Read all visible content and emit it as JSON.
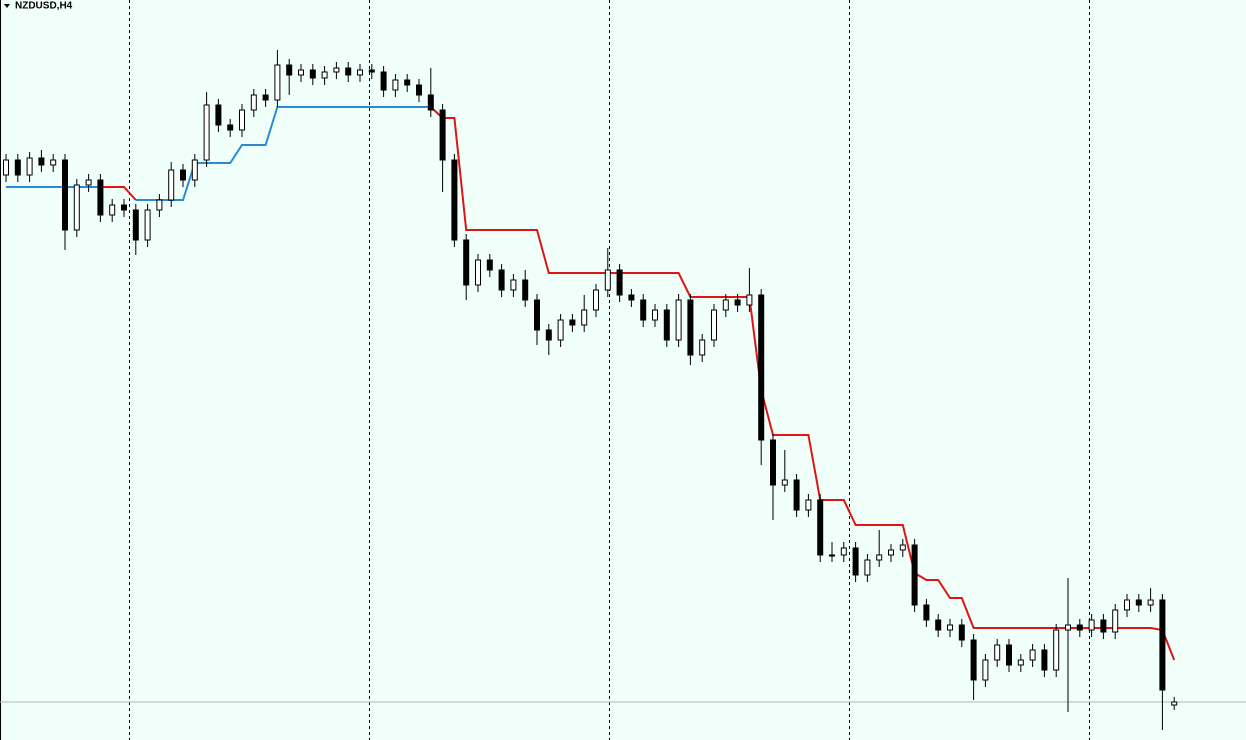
{
  "chart_data": {
    "type": "candlestick",
    "title": "NZDUSD,H4",
    "open": [
      565,
      580,
      565,
      582,
      575,
      580,
      510,
      555,
      560,
      525,
      535,
      530,
      500,
      530,
      540,
      570,
      560,
      580,
      635,
      615,
      610,
      630,
      645,
      640,
      675,
      665,
      670,
      662,
      668,
      672,
      665,
      670,
      668,
      650,
      660,
      655,
      645,
      630,
      580,
      500,
      455,
      480,
      470,
      450,
      460,
      440,
      410,
      400,
      420,
      415,
      430,
      450,
      470,
      445,
      440,
      420,
      430,
      400,
      440,
      385,
      400,
      430,
      440,
      435,
      445,
      300,
      255,
      260,
      230,
      240,
      185,
      185,
      192,
      165,
      180,
      185,
      190,
      195,
      135,
      120,
      110,
      115,
      100,
      60,
      80,
      95,
      75,
      80,
      90,
      70,
      110,
      115,
      110,
      120,
      108,
      130,
      140,
      135,
      140,
      35
    ],
    "high": [
      586,
      586,
      588,
      590,
      586,
      586,
      561,
      566,
      566,
      541,
      541,
      536,
      536,
      546,
      578,
      576,
      586,
      648,
      641,
      621,
      636,
      651,
      651,
      690,
      681,
      676,
      676,
      674,
      678,
      678,
      676,
      676,
      674,
      666,
      666,
      661,
      672,
      636,
      586,
      506,
      486,
      486,
      476,
      466,
      470,
      446,
      416,
      426,
      426,
      445,
      456,
      492,
      476,
      451,
      446,
      436,
      436,
      446,
      446,
      406,
      436,
      446,
      446,
      472,
      451,
      306,
      290,
      266,
      246,
      246,
      198,
      198,
      198,
      186,
      210,
      196,
      201,
      201,
      141,
      126,
      121,
      121,
      106,
      86,
      101,
      101,
      86,
      96,
      96,
      116,
      162,
      121,
      126,
      126,
      136,
      146,
      146,
      152,
      146,
      43
    ],
    "low": [
      558,
      558,
      558,
      568,
      568,
      490,
      503,
      548,
      518,
      518,
      523,
      485,
      493,
      523,
      533,
      553,
      553,
      573,
      608,
      603,
      603,
      623,
      633,
      633,
      645,
      658,
      655,
      655,
      661,
      658,
      658,
      661,
      643,
      643,
      648,
      638,
      623,
      548,
      493,
      440,
      448,
      463,
      443,
      443,
      433,
      395,
      385,
      393,
      408,
      408,
      423,
      443,
      438,
      433,
      413,
      413,
      393,
      393,
      375,
      378,
      393,
      423,
      428,
      428,
      275,
      220,
      248,
      223,
      223,
      178,
      178,
      178,
      158,
      158,
      173,
      178,
      183,
      128,
      113,
      103,
      103,
      93,
      40,
      53,
      73,
      68,
      68,
      73,
      63,
      63,
      28,
      103,
      103,
      101,
      101,
      123,
      128,
      128,
      10,
      30
    ],
    "close": [
      580,
      565,
      582,
      575,
      580,
      510,
      555,
      560,
      525,
      535,
      530,
      500,
      530,
      540,
      570,
      560,
      580,
      635,
      615,
      610,
      630,
      645,
      640,
      675,
      665,
      670,
      662,
      668,
      672,
      665,
      670,
      668,
      650,
      660,
      655,
      645,
      630,
      580,
      500,
      455,
      480,
      470,
      450,
      460,
      440,
      410,
      400,
      420,
      415,
      430,
      450,
      470,
      445,
      440,
      420,
      430,
      400,
      440,
      385,
      400,
      430,
      440,
      435,
      445,
      300,
      255,
      260,
      230,
      240,
      185,
      185,
      192,
      165,
      180,
      185,
      190,
      195,
      135,
      120,
      110,
      115,
      100,
      60,
      80,
      95,
      75,
      80,
      90,
      70,
      110,
      115,
      110,
      120,
      108,
      130,
      140,
      135,
      140,
      50,
      38
    ],
    "lines": [
      {
        "color": "#2a8ad4",
        "values": [
          553,
          553,
          553,
          553,
          553,
          553,
          553,
          553,
          553,
          null,
          null,
          540,
          540,
          540,
          540,
          540,
          577,
          577,
          577,
          577,
          595,
          595,
          595,
          633,
          633,
          633,
          633,
          633,
          633,
          633,
          633,
          633,
          633,
          633,
          633,
          633,
          633,
          null,
          null,
          null,
          null,
          null,
          null,
          null,
          null,
          null,
          null,
          null,
          null,
          null,
          null,
          null,
          null,
          null,
          null,
          null,
          null,
          null,
          null,
          null,
          null,
          null,
          null,
          null,
          null,
          null,
          null,
          null,
          null,
          null,
          null,
          null,
          null,
          null,
          null,
          null,
          null,
          null,
          null,
          null,
          null,
          null,
          null,
          null,
          null,
          null,
          null,
          null,
          null,
          null,
          null,
          null,
          null,
          null,
          null,
          null,
          null,
          null,
          null,
          null
        ]
      },
      {
        "color": "#dd1515",
        "values": [
          null,
          null,
          null,
          null,
          null,
          null,
          null,
          null,
          553,
          553,
          553,
          540,
          null,
          null,
          null,
          null,
          null,
          null,
          null,
          null,
          null,
          null,
          null,
          null,
          null,
          null,
          null,
          null,
          null,
          null,
          null,
          null,
          null,
          null,
          null,
          null,
          633,
          622,
          622,
          510,
          510,
          510,
          510,
          510,
          510,
          510,
          467,
          467,
          467,
          467,
          467,
          467,
          467,
          467,
          467,
          467,
          467,
          467,
          443,
          443,
          443,
          443,
          443,
          443,
          350,
          305,
          305,
          305,
          305,
          240,
          240,
          240,
          215,
          215,
          215,
          215,
          215,
          167,
          160,
          160,
          142,
          142,
          112,
          112,
          112,
          112,
          112,
          112,
          112,
          112,
          112,
          112,
          112,
          112,
          112,
          112,
          112,
          112,
          110,
          80
        ]
      }
    ],
    "price_line": 38,
    "ylim": [
      0,
      740
    ]
  }
}
